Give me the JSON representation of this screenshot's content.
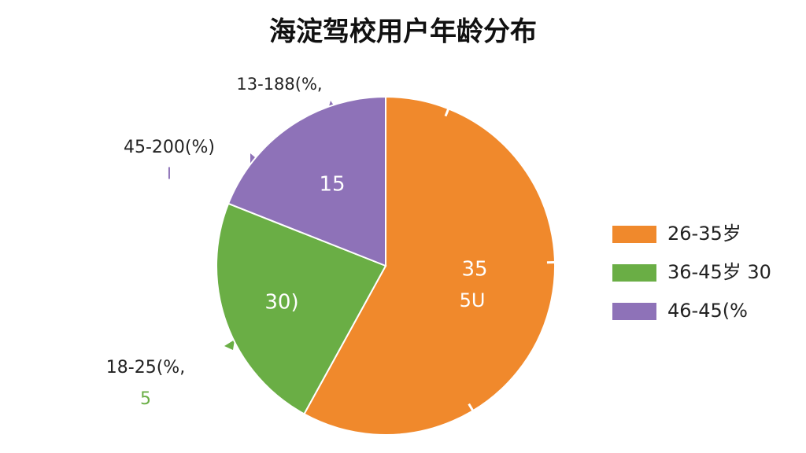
{
  "chart_data": {
    "type": "pie",
    "title": "海淀驾校用户年龄分布",
    "categories": [
      "26-35岁",
      "36-45岁 30",
      "46-45(%"
    ],
    "values": [
      58,
      23,
      19
    ],
    "colors": [
      "#f0892c",
      "#6aae45",
      "#8e72b8"
    ],
    "legend": "right",
    "annotations": [
      "13-188(%,",
      "45-200(%)",
      "I",
      "18-25(%,",
      "5",
      "15",
      "30)",
      "35",
      "5U"
    ]
  }
}
